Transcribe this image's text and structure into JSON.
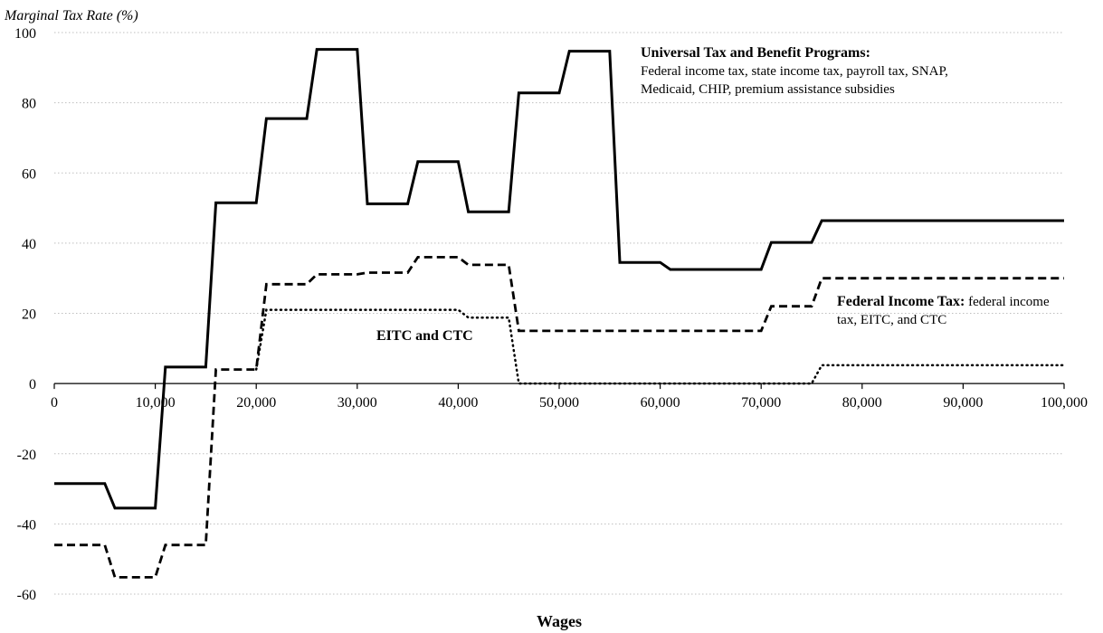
{
  "chart_data": {
    "type": "line",
    "title": "",
    "ylabel": "Marginal Tax Rate (%)",
    "xlabel": "Wages",
    "xlim": [
      0,
      100000
    ],
    "ylim": [
      -60,
      100
    ],
    "x_ticks": [
      0,
      10000,
      20000,
      30000,
      40000,
      50000,
      60000,
      70000,
      80000,
      90000,
      100000
    ],
    "x_tick_labels": [
      "0",
      "10,000",
      "20,000",
      "30,000",
      "40,000",
      "50,000",
      "60,000",
      "70,000",
      "80,000",
      "90,000",
      "100,000"
    ],
    "y_ticks": [
      100,
      80,
      60,
      40,
      20,
      0,
      -20,
      -40,
      -60
    ],
    "y_tick_labels": [
      "100",
      "80",
      "60",
      "40",
      "20",
      "0",
      "-20",
      "-40",
      "-60"
    ],
    "grid": "horizontal-dotted",
    "legend": "none",
    "series": [
      {
        "style": "solid",
        "x": [
          0,
          5000,
          6000,
          10000,
          11000,
          15000,
          16000,
          20000,
          21000,
          25000,
          26000,
          30000,
          31000,
          35000,
          36000,
          40000,
          41000,
          45000,
          46000,
          50000,
          51000,
          55000,
          56000,
          60000,
          61000,
          70000,
          71000,
          75000,
          76000,
          100000
        ],
        "y": [
          -28.5,
          -28.5,
          -35.5,
          -35.5,
          4.7,
          4.7,
          51.5,
          51.5,
          75.5,
          75.5,
          95.2,
          95.2,
          51.2,
          51.2,
          63.2,
          63.2,
          48.9,
          48.9,
          82.8,
          82.8,
          94.7,
          94.7,
          34.5,
          34.5,
          32.5,
          32.5,
          40.2,
          40.2,
          46.4,
          46.4
        ]
      },
      {
        "style": "dashed",
        "x": [
          0,
          5000,
          6000,
          10000,
          11000,
          15000,
          16000,
          20000,
          21000,
          25000,
          26000,
          30000,
          31000,
          35000,
          36000,
          40000,
          41000,
          45000,
          46000,
          70000,
          71000,
          75000,
          76000,
          100000
        ],
        "y": [
          -46,
          -46,
          -55.2,
          -55.2,
          -46,
          -46,
          4,
          4,
          28.3,
          28.3,
          31.1,
          31.1,
          31.6,
          31.6,
          36,
          36,
          33.8,
          33.8,
          15,
          15,
          22,
          22,
          30,
          30
        ]
      },
      {
        "style": "dotted",
        "x": [
          20000,
          21000,
          40000,
          41000,
          45000,
          46000,
          75000,
          76000,
          100000
        ],
        "y": [
          4,
          21,
          21,
          18.8,
          18.8,
          0,
          0,
          5.2,
          5.2
        ]
      }
    ],
    "annotations": {
      "universal_title": "Universal Tax and Benefit Programs:",
      "universal_line1": "Federal income tax, state income tax, payroll tax, SNAP,",
      "universal_line2": "Medicaid, CHIP, premium assistance subsidies",
      "federal_title": "Federal Income Tax:",
      "federal_line1_rest": " federal income",
      "federal_line2": "tax, EITC, and CTC",
      "eitc_label": "EITC and CTC"
    },
    "colors": {
      "lines": "#000000",
      "grid": "#bfbfbf",
      "axis": "#000000"
    }
  }
}
